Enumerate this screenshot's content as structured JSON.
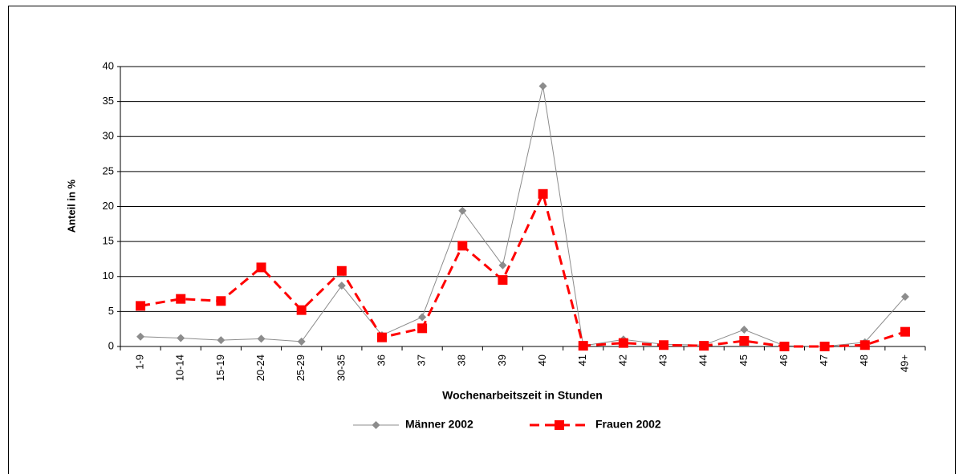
{
  "chart_data": {
    "type": "line",
    "x_label": "Wochenarbeitszeit in Stunden",
    "y_label": "Anteil in %",
    "categories": [
      "1-9",
      "10-14",
      "15-19",
      "20-24",
      "25-29",
      "30-35",
      "36",
      "37",
      "38",
      "39",
      "40",
      "41",
      "42",
      "43",
      "44",
      "45",
      "46",
      "47",
      "48",
      "49+"
    ],
    "series": [
      {
        "name": "Männer 2002",
        "color": "#8c8c8c",
        "marker": "diamond",
        "dashed": false,
        "values": [
          1.4,
          1.2,
          0.9,
          1.1,
          0.7,
          8.7,
          1.6,
          4.2,
          19.4,
          11.6,
          37.2,
          0.1,
          1.0,
          0.3,
          0.2,
          2.4,
          0.1,
          0,
          0.6,
          7.1
        ]
      },
      {
        "name": "Frauen 2002",
        "color": "#ff0000",
        "marker": "square",
        "dashed": true,
        "values": [
          5.8,
          6.8,
          6.5,
          11.3,
          5.2,
          10.8,
          1.3,
          2.6,
          14.4,
          9.5,
          21.8,
          0.1,
          0.5,
          0.2,
          0.1,
          0.8,
          0,
          0,
          0.2,
          2.1
        ]
      }
    ],
    "ylim": [
      0,
      40
    ],
    "yticks": [
      0,
      5,
      10,
      15,
      20,
      25,
      30,
      35,
      40
    ],
    "grid": true
  }
}
